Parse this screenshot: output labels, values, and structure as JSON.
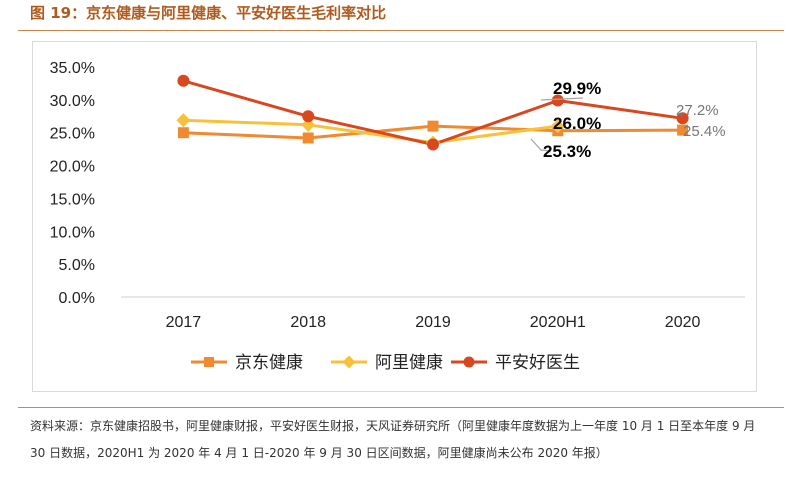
{
  "figure": {
    "title": "图 19：京东健康与阿里健康、平安好医生毛利率对比",
    "source": "资料来源：京东健康招股书，阿里健康财报，平安好医生财报，天风证券研究所（阿里健康年度数据为上一年度 10 月 1 日至本年度 9 月 30 日数据，2020H1 为 2020 年 4 月 1 日-2020 年 9 月 30 日区间数据，阿里健康尚未公布 2020 年报）"
  },
  "chart_data": {
    "type": "line",
    "title": "",
    "xlabel": "",
    "ylabel": "",
    "categories": [
      "2017",
      "2018",
      "2019",
      "2020H1",
      "2020"
    ],
    "ylim": [
      0,
      35
    ],
    "yticks": [
      0,
      5,
      10,
      15,
      20,
      25,
      30,
      35
    ],
    "ytick_labels": [
      "0.0%",
      "5.0%",
      "10.0%",
      "15.0%",
      "20.0%",
      "25.0%",
      "30.0%",
      "35.0%"
    ],
    "grid": false,
    "legend_position": "bottom",
    "series": [
      {
        "name": "京东健康",
        "color": "#f08a30",
        "marker": "square",
        "values": [
          25.0,
          24.2,
          26.0,
          25.3,
          25.4
        ]
      },
      {
        "name": "阿里健康",
        "color": "#f7c23a",
        "marker": "diamond",
        "values": [
          26.9,
          26.2,
          23.5,
          26.0,
          null
        ]
      },
      {
        "name": "平安好医生",
        "color": "#d9471f",
        "marker": "circle",
        "values": [
          32.9,
          27.5,
          23.2,
          29.9,
          27.2
        ]
      }
    ],
    "data_labels": [
      {
        "text": "29.9%",
        "bold": true
      },
      {
        "text": "26.0%",
        "bold": true
      },
      {
        "text": "25.3%",
        "bold": true
      },
      {
        "text": "27.2%",
        "bold": false
      },
      {
        "text": "25.4%",
        "bold": false
      }
    ]
  }
}
